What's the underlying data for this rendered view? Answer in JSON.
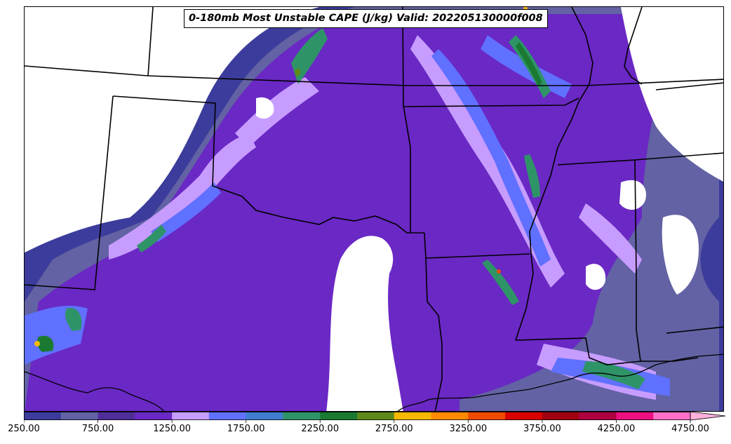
{
  "title": "0-180mb Most Unstable CAPE (J/kg) Valid: 202205130000f008",
  "colorbar": {
    "levels": [
      250,
      500,
      750,
      1000,
      1250,
      1500,
      1750,
      2000,
      2250,
      2500,
      2750,
      3000,
      3250,
      3500,
      3750,
      4000,
      4250,
      4500,
      4750
    ],
    "colors": [
      "#3c3c9c",
      "#6262a4",
      "#4f2e9a",
      "#6a28c4",
      "#c79cff",
      "#6070ff",
      "#3f7ed0",
      "#2e9468",
      "#1a7a32",
      "#5d8a1a",
      "#f6b800",
      "#ff8a00",
      "#f04a00",
      "#d80000",
      "#a00010",
      "#b00040",
      "#ee1080",
      "#ff70c8"
    ],
    "tick_labels": [
      "250.00",
      "750.00",
      "1250.00",
      "1750.00",
      "2250.00",
      "2750.00",
      "3250.00",
      "3750.00",
      "4250.00",
      "4750.00"
    ],
    "extend": "max"
  }
}
